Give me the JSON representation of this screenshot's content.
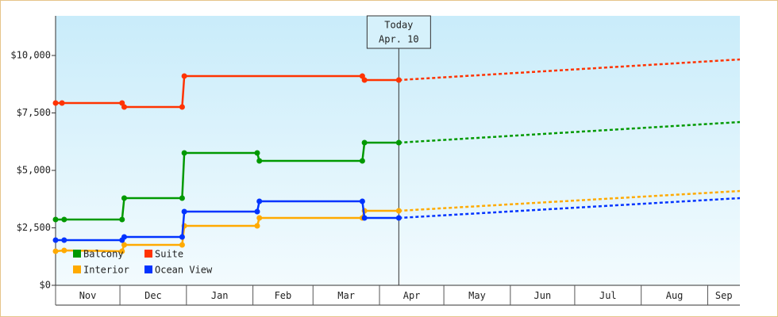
{
  "chart_data": {
    "type": "line",
    "xlim": [
      0,
      319
    ],
    "ylim": [
      0,
      11724
    ],
    "xticks": [
      {
        "value": 0,
        "label": "Nov"
      },
      {
        "value": 30,
        "label": "Dec"
      },
      {
        "value": 61,
        "label": "Jan"
      },
      {
        "value": 92,
        "label": "Feb"
      },
      {
        "value": 120,
        "label": "Mar"
      },
      {
        "value": 151,
        "label": "Apr"
      },
      {
        "value": 181,
        "label": "May"
      },
      {
        "value": 212,
        "label": "Jun"
      },
      {
        "value": 242,
        "label": "Jul"
      },
      {
        "value": 273,
        "label": "Aug"
      },
      {
        "value": 304,
        "label": "Sep"
      }
    ],
    "yticks": [
      {
        "value": 0,
        "label": "$0"
      },
      {
        "value": 2500,
        "label": "$2,500"
      },
      {
        "value": 5000,
        "label": "$5,000"
      },
      {
        "value": 7500,
        "label": "$7,500"
      },
      {
        "value": 10000,
        "label": "$10,000"
      }
    ],
    "today": {
      "x": 160,
      "label": [
        "Today",
        "Apr. 10"
      ]
    },
    "legend": "lower left",
    "series": [
      {
        "name": "Balcony",
        "color": "#009900",
        "x": [
          0,
          4,
          31,
          32,
          59,
          60,
          94,
          95,
          143,
          144,
          160
        ],
        "values": [
          2862,
          2862,
          2862,
          3793,
          3793,
          5759,
          5759,
          5414,
          5414,
          6207,
          6207
        ],
        "forecast_x": [
          160,
          319
        ],
        "forecast_values": [
          6207,
          7103
        ]
      },
      {
        "name": "Suite",
        "color": "#ff3300",
        "x": [
          0,
          3,
          31,
          32,
          59,
          60,
          143,
          144,
          160
        ],
        "values": [
          7931,
          7931,
          7931,
          7759,
          7759,
          9103,
          9103,
          8931,
          8931
        ],
        "forecast_x": [
          160,
          319
        ],
        "forecast_values": [
          8931,
          9828
        ]
      },
      {
        "name": "Interior",
        "color": "#ffaa00",
        "x": [
          0,
          4,
          31,
          32,
          59,
          60,
          94,
          95,
          143,
          144,
          160
        ],
        "values": [
          1483,
          1517,
          1483,
          1759,
          1759,
          2586,
          2586,
          2931,
          2931,
          3241,
          3241
        ],
        "forecast_x": [
          160,
          319
        ],
        "forecast_values": [
          3241,
          4103
        ]
      },
      {
        "name": "Ocean View",
        "color": "#0033ff",
        "x": [
          0,
          4,
          31,
          32,
          59,
          60,
          94,
          95,
          143,
          144,
          160
        ],
        "values": [
          1966,
          1966,
          1966,
          2103,
          2103,
          3207,
          3207,
          3655,
          3655,
          2931,
          2931
        ],
        "forecast_x": [
          160,
          319
        ],
        "forecast_values": [
          2931,
          3793
        ]
      }
    ]
  }
}
